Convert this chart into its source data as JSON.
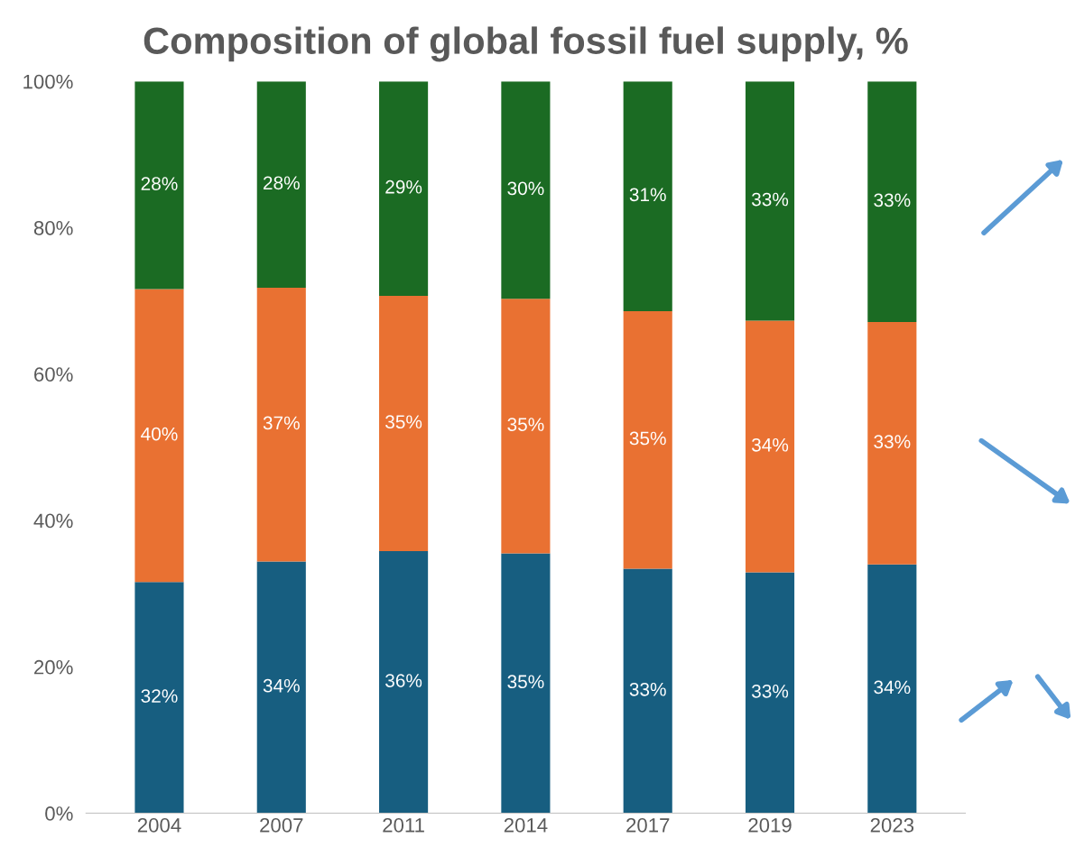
{
  "chart_data": {
    "type": "bar",
    "title": "Composition of global fossil fuel supply, %",
    "categories": [
      "2004",
      "2007",
      "2011",
      "2014",
      "2017",
      "2019",
      "2023"
    ],
    "stacked": true,
    "series": [
      {
        "color": "#175e80",
        "values": [
          31.6,
          34.4,
          35.8,
          35.5,
          33.4,
          32.9,
          34.0
        ],
        "value_labels": [
          "32%",
          "34%",
          "36%",
          "35%",
          "33%",
          "33%",
          "34%"
        ]
      },
      {
        "color": "#e97132",
        "values": [
          40.0,
          37.4,
          34.9,
          34.8,
          35.2,
          34.4,
          33.1
        ],
        "value_labels": [
          "40%",
          "37%",
          "35%",
          "35%",
          "35%",
          "34%",
          "33%"
        ]
      },
      {
        "color": "#1b6b23",
        "values": [
          28.4,
          28.2,
          29.3,
          29.7,
          31.4,
          32.7,
          32.9
        ],
        "value_labels": [
          "28%",
          "28%",
          "29%",
          "30%",
          "31%",
          "33%",
          "33%"
        ]
      }
    ],
    "ylim": [
      0,
      100
    ],
    "yticks": [
      {
        "value": 0,
        "label": "0%"
      },
      {
        "value": 20,
        "label": "20%"
      },
      {
        "value": 40,
        "label": "40%"
      },
      {
        "value": 60,
        "label": "60%"
      },
      {
        "value": 80,
        "label": "80%"
      },
      {
        "value": 100,
        "label": "100%"
      }
    ],
    "grid": false,
    "legend": false
  }
}
